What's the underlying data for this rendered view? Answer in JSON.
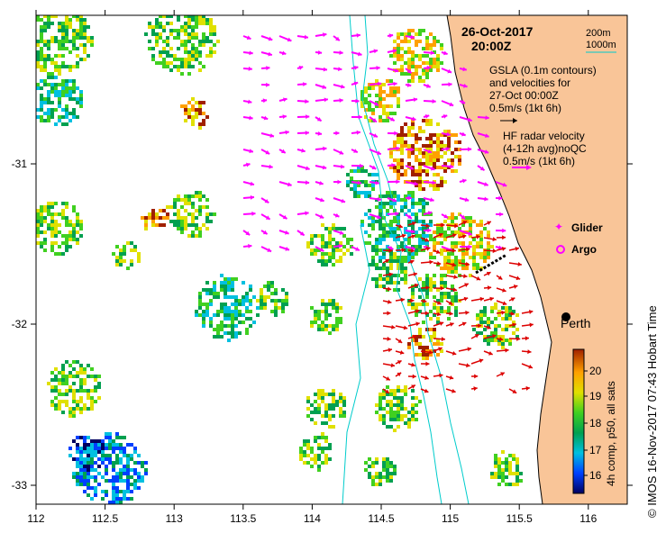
{
  "map": {
    "date": "26-Oct-2017",
    "time": "20:00Z",
    "scale_200m": "200m",
    "scale_1000m": "1000m",
    "gsla_line1": "GSLA (0.1m contours)",
    "gsla_line2": "and velocities for",
    "gsla_line3": "27-Oct 00:00Z",
    "gsla_scale": "0.5m/s (1kt 6h)",
    "hf_line1": "HF radar velocity",
    "hf_line2": "(4-12h avg)noQC",
    "hf_scale": "0.5m/s (1kt 6h)",
    "legend_glider": "Glider",
    "legend_argo": "Argo",
    "city": "Perth",
    "colorbar_label": "4h comp, p50, all sats",
    "credit": "© IMOS 16-Nov-2017 07:43 Hobart Time",
    "lon_ticks": [
      "112",
      "112.5",
      "113",
      "113.5",
      "114",
      "114.5",
      "115",
      "115.5",
      "116"
    ],
    "lat_ticks": [
      "-31",
      "-32",
      "-33"
    ],
    "colorbar_ticks": [
      "16",
      "17",
      "18",
      "19",
      "20"
    ],
    "colors": {
      "land": "#f9c598",
      "contour": "#00cccc",
      "gsla_arrow": "#ff00ff",
      "hf_arrow": "#dd0000",
      "colorbar_stops": [
        "#000060",
        "#0040ff",
        "#00c0e0",
        "#00a050",
        "#40d020",
        "#e0e000",
        "#ffa000",
        "#a02000"
      ]
    }
  }
}
